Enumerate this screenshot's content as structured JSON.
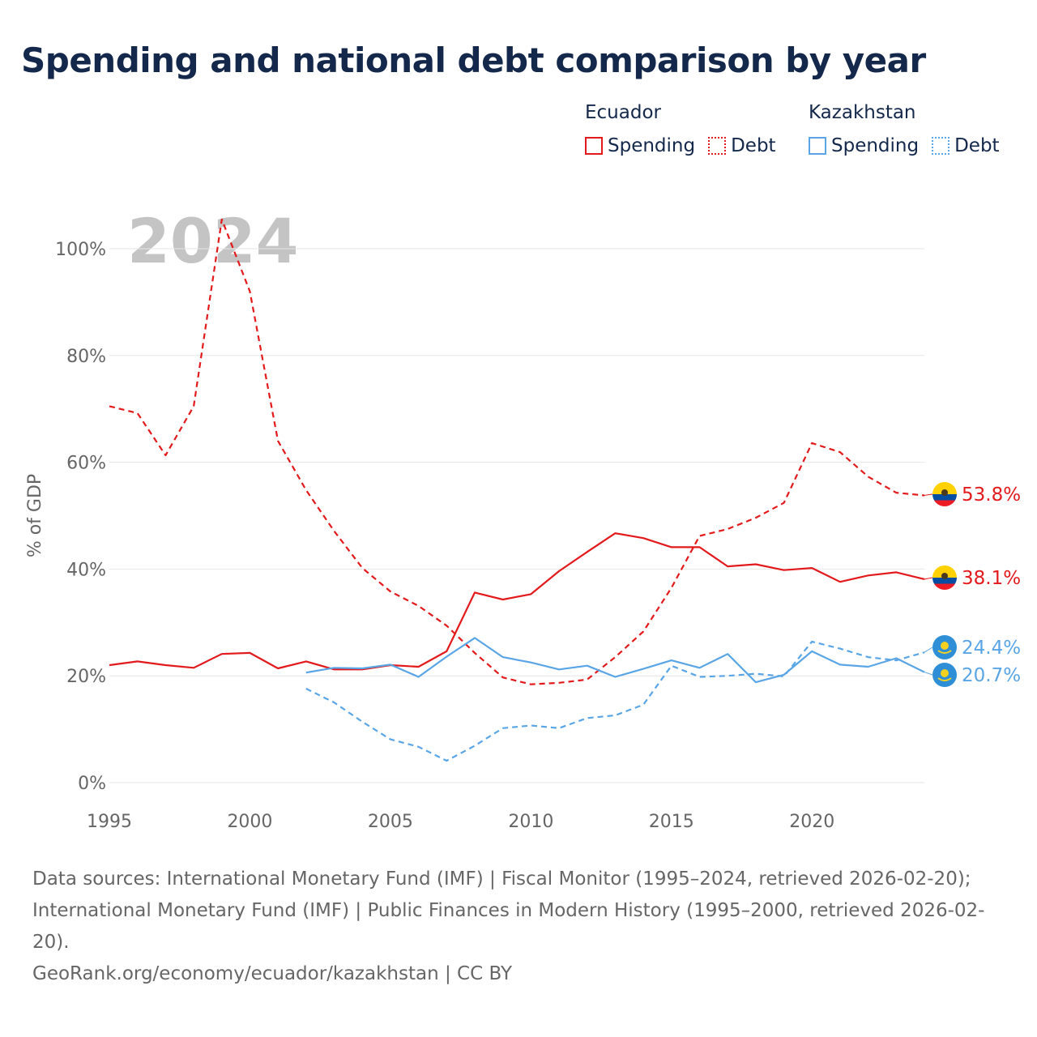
{
  "title": "Spending and national debt comparison by year",
  "legend": {
    "groups": [
      {
        "name": "Ecuador",
        "items": [
          {
            "label": "Spending",
            "style": "solid",
            "color": "#e31a1c"
          },
          {
            "label": "Debt",
            "style": "dotted",
            "color": "#e31a1c"
          }
        ]
      },
      {
        "name": "Kazakhstan",
        "items": [
          {
            "label": "Spending",
            "style": "solid",
            "color": "#5aa5e6"
          },
          {
            "label": "Debt",
            "style": "dotted",
            "color": "#5aa5e6"
          }
        ]
      }
    ]
  },
  "colors": {
    "ecuador": "#e31a1c",
    "kazakhstan": "#5aa5e6",
    "year_watermark": "#c4c4c4",
    "grid": "#e6e6e6",
    "axis_text": "#666666",
    "title": "#14284b"
  },
  "chart_data": {
    "type": "line",
    "title": "Spending and national debt comparison by year",
    "xlabel": "",
    "ylabel": "% of GDP",
    "xlim": [
      1995,
      2024
    ],
    "ylim": [
      0,
      105
    ],
    "x_ticks": [
      1995,
      2000,
      2005,
      2010,
      2015,
      2020
    ],
    "y_ticks": [
      0,
      20,
      40,
      60,
      80,
      100
    ],
    "y_tick_suffix": "%",
    "grid": true,
    "legend_position": "top-right",
    "year_label": "2024",
    "series": [
      {
        "name": "Ecuador Spending",
        "country": "Ecuador",
        "metric": "Spending",
        "style": "solid",
        "color": "#e31a1c",
        "x": [
          1995,
          1996,
          1997,
          1998,
          1999,
          2000,
          2001,
          2002,
          2003,
          2004,
          2005,
          2006,
          2007,
          2008,
          2009,
          2010,
          2011,
          2012,
          2013,
          2014,
          2015,
          2016,
          2017,
          2018,
          2019,
          2020,
          2021,
          2022,
          2023,
          2024
        ],
        "y": [
          22.0,
          22.7,
          22.0,
          21.5,
          24.1,
          24.3,
          21.4,
          22.7,
          21.2,
          21.2,
          22.0,
          21.7,
          24.6,
          35.6,
          34.3,
          35.3,
          39.6,
          43.2,
          46.7,
          45.8,
          44.1,
          44.1,
          40.5,
          40.9,
          39.8,
          40.2,
          37.6,
          38.8,
          39.4,
          38.1
        ],
        "end_label": "38.1%"
      },
      {
        "name": "Ecuador Debt",
        "country": "Ecuador",
        "metric": "Debt",
        "style": "dashed",
        "color": "#e31a1c",
        "x": [
          1995,
          1996,
          1997,
          1998,
          1999,
          2000,
          2001,
          2002,
          2003,
          2004,
          2005,
          2006,
          2007,
          2008,
          2009,
          2010,
          2011,
          2012,
          2013,
          2014,
          2015,
          2016,
          2017,
          2018,
          2019,
          2020,
          2021,
          2022,
          2023,
          2024
        ],
        "y": [
          70.5,
          69.2,
          61.3,
          70.5,
          105.5,
          92.0,
          64.0,
          54.8,
          47.1,
          40.2,
          35.8,
          33.1,
          29.4,
          24.3,
          19.7,
          18.4,
          18.7,
          19.3,
          23.5,
          28.3,
          36.5,
          46.2,
          47.5,
          49.6,
          52.4,
          63.6,
          61.9,
          57.3,
          54.3,
          53.8
        ],
        "end_label": "53.8%"
      },
      {
        "name": "Kazakhstan Spending",
        "country": "Kazakhstan",
        "metric": "Spending",
        "style": "solid",
        "color": "#5aa5e6",
        "x": [
          2002,
          2003,
          2004,
          2005,
          2006,
          2007,
          2008,
          2009,
          2010,
          2011,
          2012,
          2013,
          2014,
          2015,
          2016,
          2017,
          2018,
          2019,
          2020,
          2021,
          2022,
          2023,
          2024
        ],
        "y": [
          20.6,
          21.5,
          21.4,
          22.1,
          19.8,
          23.6,
          27.1,
          23.5,
          22.5,
          21.2,
          21.9,
          19.8,
          21.3,
          22.9,
          21.5,
          24.1,
          18.8,
          20.2,
          24.6,
          22.1,
          21.7,
          23.3,
          20.7
        ],
        "end_label": "20.7%"
      },
      {
        "name": "Kazakhstan Debt",
        "country": "Kazakhstan",
        "metric": "Debt",
        "style": "dashed",
        "color": "#5aa5e6",
        "x": [
          2002,
          2003,
          2004,
          2005,
          2006,
          2007,
          2008,
          2009,
          2010,
          2011,
          2012,
          2013,
          2014,
          2015,
          2016,
          2017,
          2018,
          2019,
          2020,
          2021,
          2022,
          2023,
          2024
        ],
        "y": [
          17.6,
          15.0,
          11.4,
          8.1,
          6.7,
          4.1,
          6.9,
          10.2,
          10.7,
          10.2,
          12.1,
          12.6,
          14.6,
          21.9,
          19.8,
          20.0,
          20.4,
          19.9,
          26.4,
          25.1,
          23.5,
          22.9,
          24.4
        ],
        "end_label": "24.4%"
      }
    ]
  },
  "sources": {
    "line1": "Data sources: International Monetary Fund (IMF) | Fiscal Monitor (1995–2024, retrieved 2026-02-20); International Monetary Fund (IMF) | Public Finances in Modern History (1995–2000, retrieved 2026-02-20).",
    "line2": "GeoRank.org/economy/ecuador/kazakhstan | CC BY"
  },
  "icons": {
    "ecuador_flag": "ecuador-flag-icon",
    "kazakhstan_flag": "kazakhstan-flag-icon"
  }
}
